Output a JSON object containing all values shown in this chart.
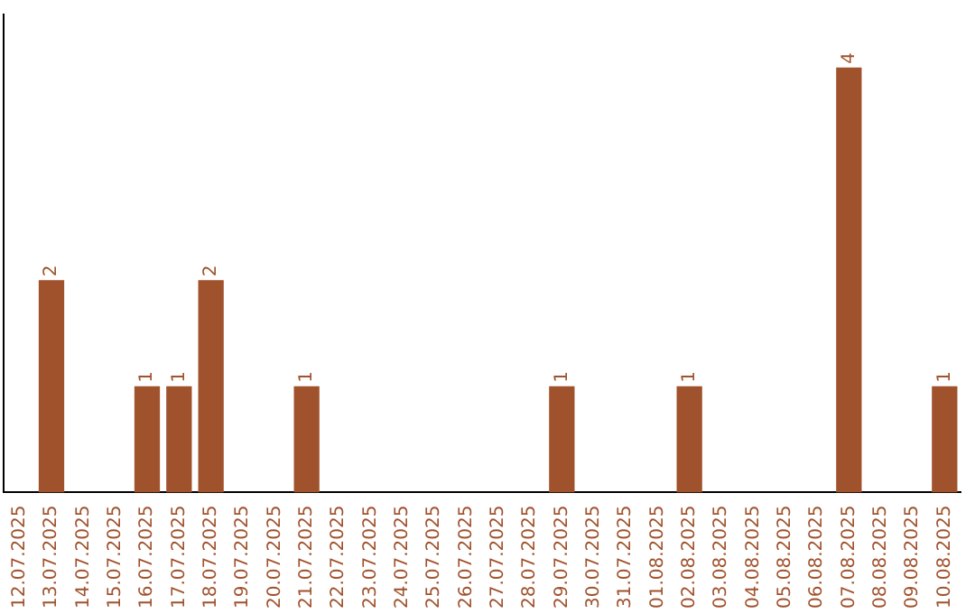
{
  "chart_data": {
    "type": "bar",
    "categories": [
      "12.07.2025",
      "13.07.2025",
      "14.07.2025",
      "15.07.2025",
      "16.07.2025",
      "17.07.2025",
      "18.07.2025",
      "19.07.2025",
      "20.07.2025",
      "21.07.2025",
      "22.07.2025",
      "23.07.2025",
      "24.07.2025",
      "25.07.2025",
      "26.07.2025",
      "27.07.2025",
      "28.07.2025",
      "29.07.2025",
      "30.07.2025",
      "31.07.2025",
      "01.08.2025",
      "02.08.2025",
      "03.08.2025",
      "04.08.2025",
      "05.08.2025",
      "06.08.2025",
      "07.08.2025",
      "08.08.2025",
      "09.08.2025",
      "10.08.2025"
    ],
    "values": [
      0,
      2,
      0,
      0,
      1,
      1,
      2,
      0,
      0,
      1,
      0,
      0,
      0,
      0,
      0,
      0,
      0,
      1,
      0,
      0,
      0,
      1,
      0,
      0,
      0,
      0,
      4,
      0,
      0,
      1
    ],
    "value_labels": [
      null,
      "2",
      null,
      null,
      "1",
      "1",
      "2",
      null,
      null,
      "1",
      null,
      null,
      null,
      null,
      null,
      null,
      null,
      "1",
      null,
      null,
      null,
      "1",
      null,
      null,
      null,
      null,
      "4",
      null,
      null,
      "1"
    ],
    "color": "#a0522d",
    "grid": false,
    "legend": false,
    "tick_labels": "x"
  }
}
